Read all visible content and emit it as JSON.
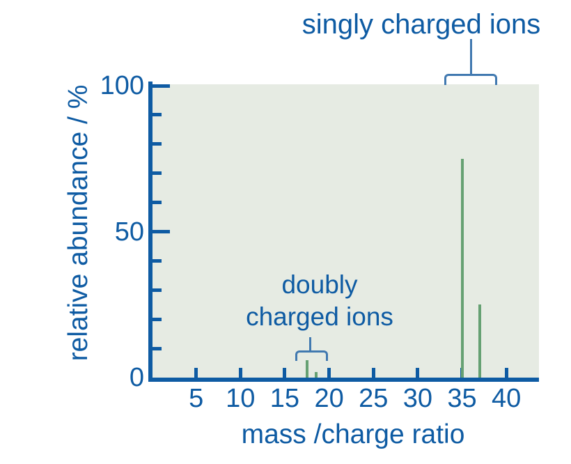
{
  "figure": {
    "colors": {
      "axis_blue": "#0e5ba3",
      "text_blue": "#0e5ba3",
      "bracket_blue": "#4179b0",
      "peak_green": "#66a173",
      "plot_background": "#e6ebe3",
      "page_background": "#ffffff"
    }
  },
  "chart_data": {
    "type": "bar",
    "subtype": "mass-spectrum-stick-plot",
    "title": "",
    "xlabel": "mass /charge ratio",
    "ylabel": "relative abundance / %",
    "xlim": [
      0,
      43.6
    ],
    "ylim": [
      0,
      100
    ],
    "x_ticks": [
      5,
      10,
      15,
      20,
      25,
      30,
      35,
      40
    ],
    "y_major_ticks": [
      0,
      50,
      100
    ],
    "y_minor_tick_interval": 10,
    "grid": "off",
    "peaks": [
      {
        "mz": 17.5,
        "abundance": 6,
        "group": "doubly charged ions"
      },
      {
        "mz": 18.5,
        "abundance": 2,
        "group": "doubly charged ions"
      },
      {
        "mz": 35,
        "abundance": 75,
        "group": "singly charged ions"
      },
      {
        "mz": 37,
        "abundance": 25,
        "group": "singly charged ions"
      }
    ],
    "annotations": [
      {
        "label": "singly charged ions",
        "bracket_mz_range": [
          33,
          38.5
        ]
      },
      {
        "label": "doubly charged ions",
        "bracket_mz_range": [
          16.2,
          19.4
        ]
      }
    ]
  },
  "axes": {
    "x_tick_labels": [
      "5",
      "10",
      "15",
      "20",
      "25",
      "30",
      "35",
      "40"
    ],
    "y_tick_labels": [
      "0",
      "50",
      "100"
    ]
  },
  "annotations": {
    "singly": {
      "label": "singly charged ions"
    },
    "doubly": {
      "line1": "doubly",
      "line2": "charged ions"
    }
  }
}
